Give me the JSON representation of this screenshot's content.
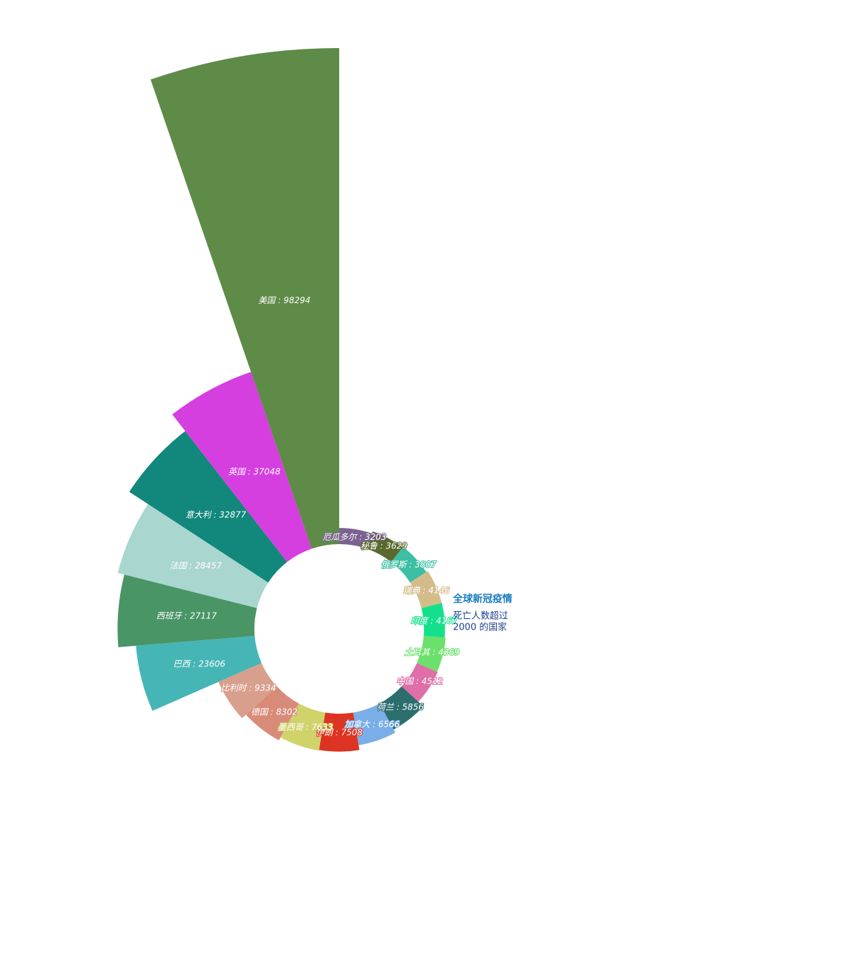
{
  "chart_data": {
    "type": "rose",
    "title": "全球新冠疫情",
    "subtitle": [
      "死亡人数超过",
      "2000 的国家"
    ],
    "values": [
      3203,
      3629,
      3807,
      4146,
      4167,
      4369,
      4512,
      5856,
      6566,
      7508,
      7633,
      8302,
      9334,
      23606,
      27117,
      28457,
      32877,
      37048,
      98294
    ],
    "value_labels": [
      "厄瓜多尔 : 3203",
      "秘鲁 : 3629",
      "俄罗斯 : 3807",
      "瑞典 : 4146",
      "印度 : 4167",
      "土耳其 : 4369",
      "中国 : 4512",
      "荷兰 : 5856",
      "加拿大 : 6566",
      "伊朗 : 7508",
      "墨西哥 : 7633",
      "德国 : 8302",
      "比利时 : 9334",
      "巴西 : 23606",
      "西班牙 : 27117",
      "法国 : 28457",
      "意大利 : 32877",
      "英国 : 37048",
      "美国 : 98294"
    ],
    "colors": [
      "#7b6391",
      "#5a6a2e",
      "#3cbfa4",
      "#d4bc8a",
      "#14e08c",
      "#6be06b",
      "#df6fa8",
      "#2c6e6e",
      "#7aaee8",
      "#dd3322",
      "#cfd36a",
      "#d98b7a",
      "#d99f8d",
      "#46b5b5",
      "#4a9566",
      "#a9d6cf",
      "#12877c",
      "#d53fdf",
      "#5e8b47"
    ]
  }
}
